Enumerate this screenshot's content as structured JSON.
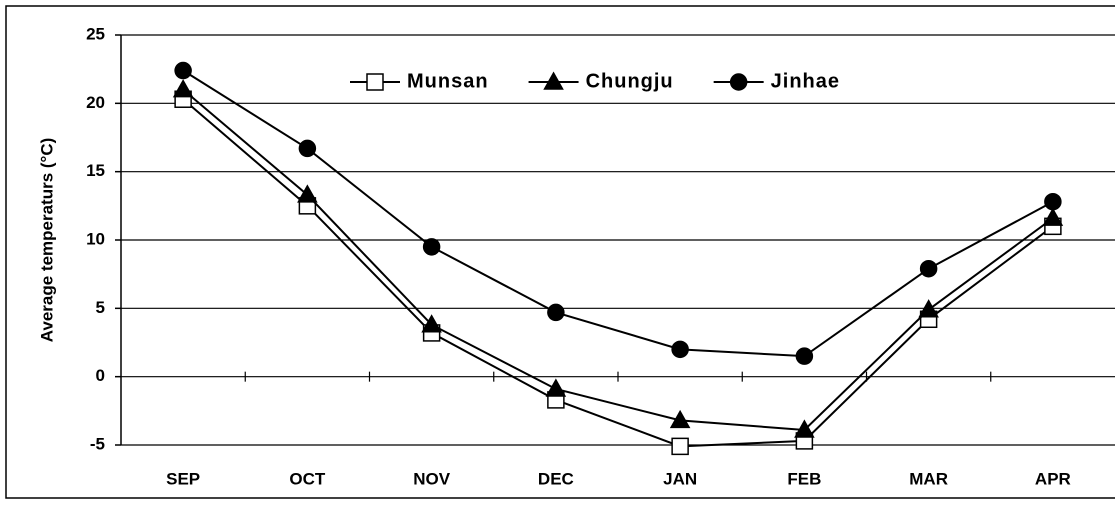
{
  "chart_data": {
    "type": "line",
    "y_label": "Average temperaturs (°C)",
    "categories": [
      "SEP",
      "OCT",
      "NOV",
      "DEC",
      "JAN",
      "FEB",
      "MAR",
      "APR"
    ],
    "series": [
      {
        "name": "Munsan",
        "color": "#000000",
        "marker": "square",
        "marker_fill": "#ffffff",
        "values": [
          20.3,
          12.5,
          3.2,
          -1.7,
          -5.1,
          -4.7,
          4.2,
          11.0
        ]
      },
      {
        "name": "Chungju",
        "color": "#000000",
        "marker": "triangle",
        "marker_fill": "#000000",
        "values": [
          21.0,
          13.3,
          3.8,
          -0.9,
          -3.2,
          -3.9,
          4.9,
          11.6
        ]
      },
      {
        "name": "Jinhae",
        "color": "#000000",
        "marker": "circle",
        "marker_fill": "#000000",
        "values": [
          22.4,
          16.7,
          9.5,
          4.7,
          2.0,
          1.5,
          7.9,
          12.8
        ]
      }
    ],
    "ylim": [
      -5,
      25
    ],
    "yticks": [
      -5,
      0,
      5,
      10,
      15,
      20,
      25
    ],
    "grid": true,
    "legend": "top"
  }
}
